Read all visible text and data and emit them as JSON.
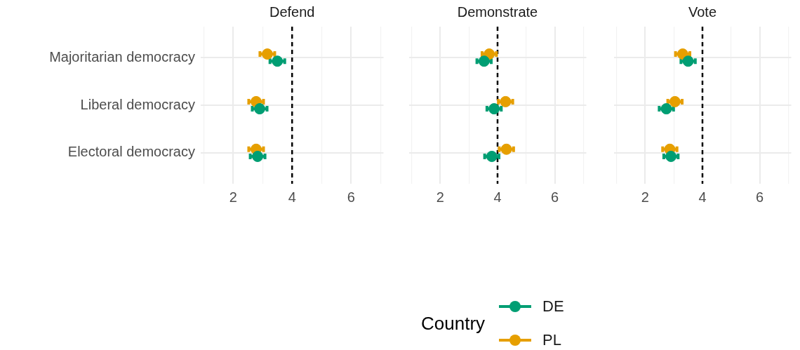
{
  "chart_data": [
    {
      "type": "scatter",
      "title": "Defend",
      "orientation": "horizontal",
      "categories": [
        "Majoritarian democracy",
        "Liberal democracy",
        "Electoral democracy"
      ],
      "series": [
        {
          "name": "DE",
          "color": "#009e73",
          "values": [
            3.5,
            2.9,
            2.83
          ],
          "errors": [
            0.25,
            0.25,
            0.25
          ]
        },
        {
          "name": "PL",
          "color": "#e69f00",
          "values": [
            3.16,
            2.78,
            2.78
          ],
          "errors": [
            0.25,
            0.25,
            0.25
          ]
        }
      ],
      "xlim": [
        0.9,
        7.1
      ],
      "xticks": [
        {
          "value": 1,
          "label": null
        },
        2,
        {
          "value": 3,
          "label": null
        },
        4,
        {
          "value": 5,
          "label": null
        },
        6,
        {
          "value": 7,
          "label": null
        }
      ],
      "ref_lines": [
        {
          "axis": "x",
          "value": 4,
          "color": "#000000",
          "line_style": "dashed"
        }
      ],
      "grid": true,
      "marker": "circle",
      "legend": "bottom",
      "legend_title": "Country"
    },
    {
      "type": "scatter",
      "title": "Demonstrate",
      "orientation": "horizontal",
      "series": [
        {
          "color": "#009e73",
          "values": [
            3.53,
            3.88,
            3.8
          ],
          "errors": [
            0.25,
            0.25,
            0.25
          ]
        },
        {
          "color": "#e69f00",
          "values": [
            3.71,
            4.28,
            4.31
          ],
          "errors": [
            0.25,
            0.25,
            0.25
          ]
        }
      ],
      "xlim": [
        0.9,
        7.1
      ],
      "xticks": [
        {
          "value": 1,
          "label": null
        },
        2,
        {
          "value": 3,
          "label": null
        },
        4,
        {
          "value": 5,
          "label": null
        },
        6,
        {
          "value": 7,
          "label": null
        }
      ],
      "ref_lines": [
        {
          "axis": "x",
          "value": 4,
          "color": "#000000",
          "line_style": "dashed"
        }
      ],
      "grid": true,
      "marker": "circle",
      "tick_labels": "x"
    },
    {
      "type": "scatter",
      "title": "Vote",
      "orientation": "horizontal",
      "series": [
        {
          "color": "#009e73",
          "values": [
            3.5,
            2.74,
            2.9
          ],
          "errors": [
            0.25,
            0.25,
            0.25
          ]
        },
        {
          "color": "#e69f00",
          "values": [
            3.31,
            3.04,
            2.86
          ],
          "errors": [
            0.25,
            0.25,
            0.25
          ]
        }
      ],
      "xlim": [
        0.9,
        7.1
      ],
      "xticks": [
        {
          "value": 1,
          "label": null
        },
        2,
        {
          "value": 3,
          "label": null
        },
        4,
        {
          "value": 5,
          "label": null
        },
        6,
        {
          "value": 7,
          "label": null
        }
      ],
      "ref_lines": [
        {
          "axis": "x",
          "value": 4,
          "color": "#000000",
          "line_style": "dashed"
        }
      ],
      "grid": true,
      "marker": "circle",
      "tick_labels": "x"
    }
  ]
}
